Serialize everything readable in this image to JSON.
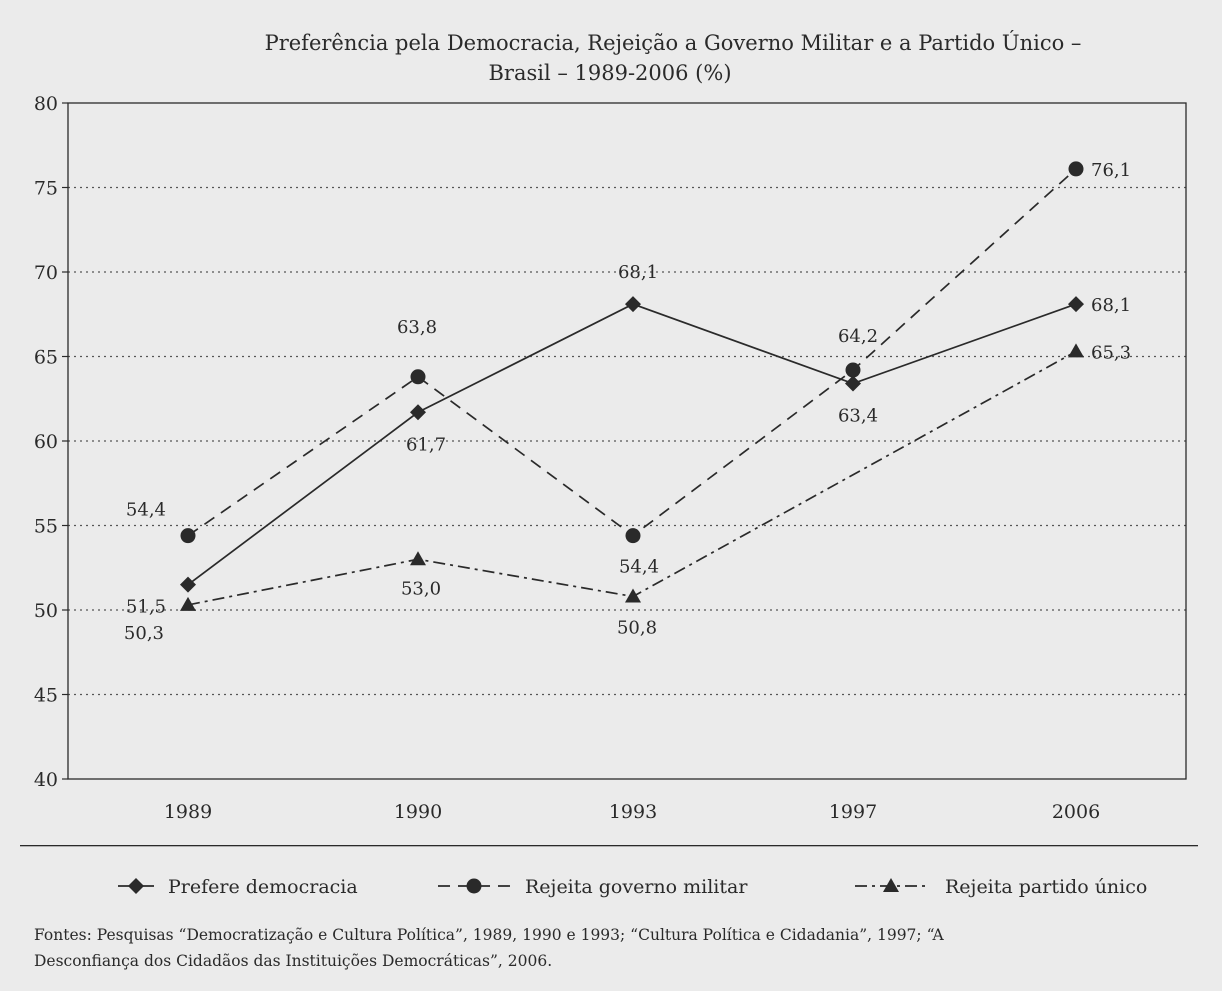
{
  "chart_data": {
    "type": "line",
    "title_lines": [
      "Preferência pela Democracia, Rejeição a Governo Militar e a Partido Único –",
      "Brasil – 1989-2006 (%)"
    ],
    "categories": [
      "1989",
      "1990",
      "1993",
      "1997",
      "2006"
    ],
    "ylim": [
      40,
      80
    ],
    "yticks": [
      40,
      45,
      50,
      55,
      60,
      65,
      70,
      75,
      80
    ],
    "grid": "horizontal dotted",
    "legend_position": "bottom",
    "series": [
      {
        "name": "Prefere democracia",
        "values": [
          51.5,
          61.7,
          68.1,
          63.4,
          68.1
        ],
        "labels": [
          "51,5",
          "61,7",
          "68,1",
          "63,4",
          "68,1"
        ],
        "marker": "diamond",
        "line": "solid"
      },
      {
        "name": "Rejeita governo militar",
        "values": [
          54.4,
          63.8,
          54.4,
          64.2,
          76.1
        ],
        "labels": [
          "54,4",
          "63,8",
          "54,4",
          "64,2",
          "76,1"
        ],
        "marker": "circle",
        "line": "dashed"
      },
      {
        "name": "Rejeita partido único",
        "values": [
          50.3,
          53.0,
          50.8,
          null,
          65.3
        ],
        "labels": [
          "50,3",
          "53,0",
          "50,8",
          "",
          "65,3"
        ],
        "marker": "triangle",
        "line": "dashdot"
      }
    ]
  },
  "source": {
    "line1": "Fontes: Pesquisas “Democratização e Cultura Política”, 1989, 1990 e 1993; “Cultura Política e Cidadania”, 1997; “A",
    "line2": "Desconfiança dos Cidadãos das Instituições Democráticas”, 2006."
  },
  "colors": {
    "background": "#ebebeb",
    "ink": "#2a2a2a"
  }
}
